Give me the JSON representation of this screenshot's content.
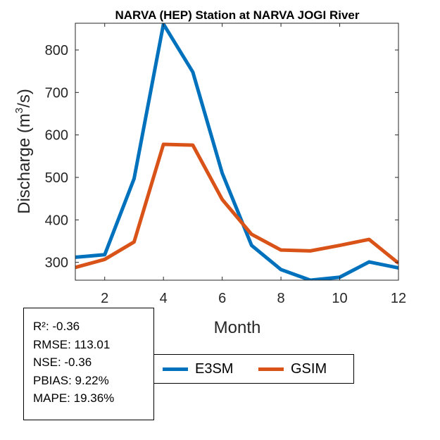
{
  "chart_data": {
    "type": "line",
    "title": "NARVA (HEP)  Station at  NARVA JOGI  River",
    "xlabel": "Month",
    "ylabel_main": "Discharge (m",
    "ylabel_sup": "3",
    "ylabel_end": "/s)",
    "x": [
      1,
      2,
      3,
      4,
      5,
      6,
      7,
      8,
      9,
      10,
      11,
      12
    ],
    "xlim": [
      1,
      12
    ],
    "ylim": [
      258,
      863
    ],
    "xticks": [
      2,
      4,
      6,
      8,
      10,
      12
    ],
    "yticks": [
      300,
      400,
      500,
      600,
      700,
      800
    ],
    "grid": false,
    "series": [
      {
        "name": "E3SM",
        "color": "#0072BD",
        "values": [
          312,
          318,
          497,
          861,
          748,
          510,
          340,
          283,
          258,
          265,
          301,
          287
        ]
      },
      {
        "name": "GSIM",
        "color": "#D95319",
        "values": [
          288,
          307,
          348,
          578,
          576,
          448,
          366,
          329,
          327,
          340,
          354,
          298
        ]
      }
    ]
  },
  "stats": {
    "r2": "R²: -0.36",
    "rmse": "RMSE: 113.01",
    "nse": "NSE: -0.36",
    "pbias": "PBIAS: 9.22%",
    "mape": "MAPE: 19.36%"
  },
  "legend": {
    "e3sm_label": "E3SM",
    "gsim_label": "GSIM",
    "e3sm_color": "#0072BD",
    "gsim_color": "#D95319"
  }
}
